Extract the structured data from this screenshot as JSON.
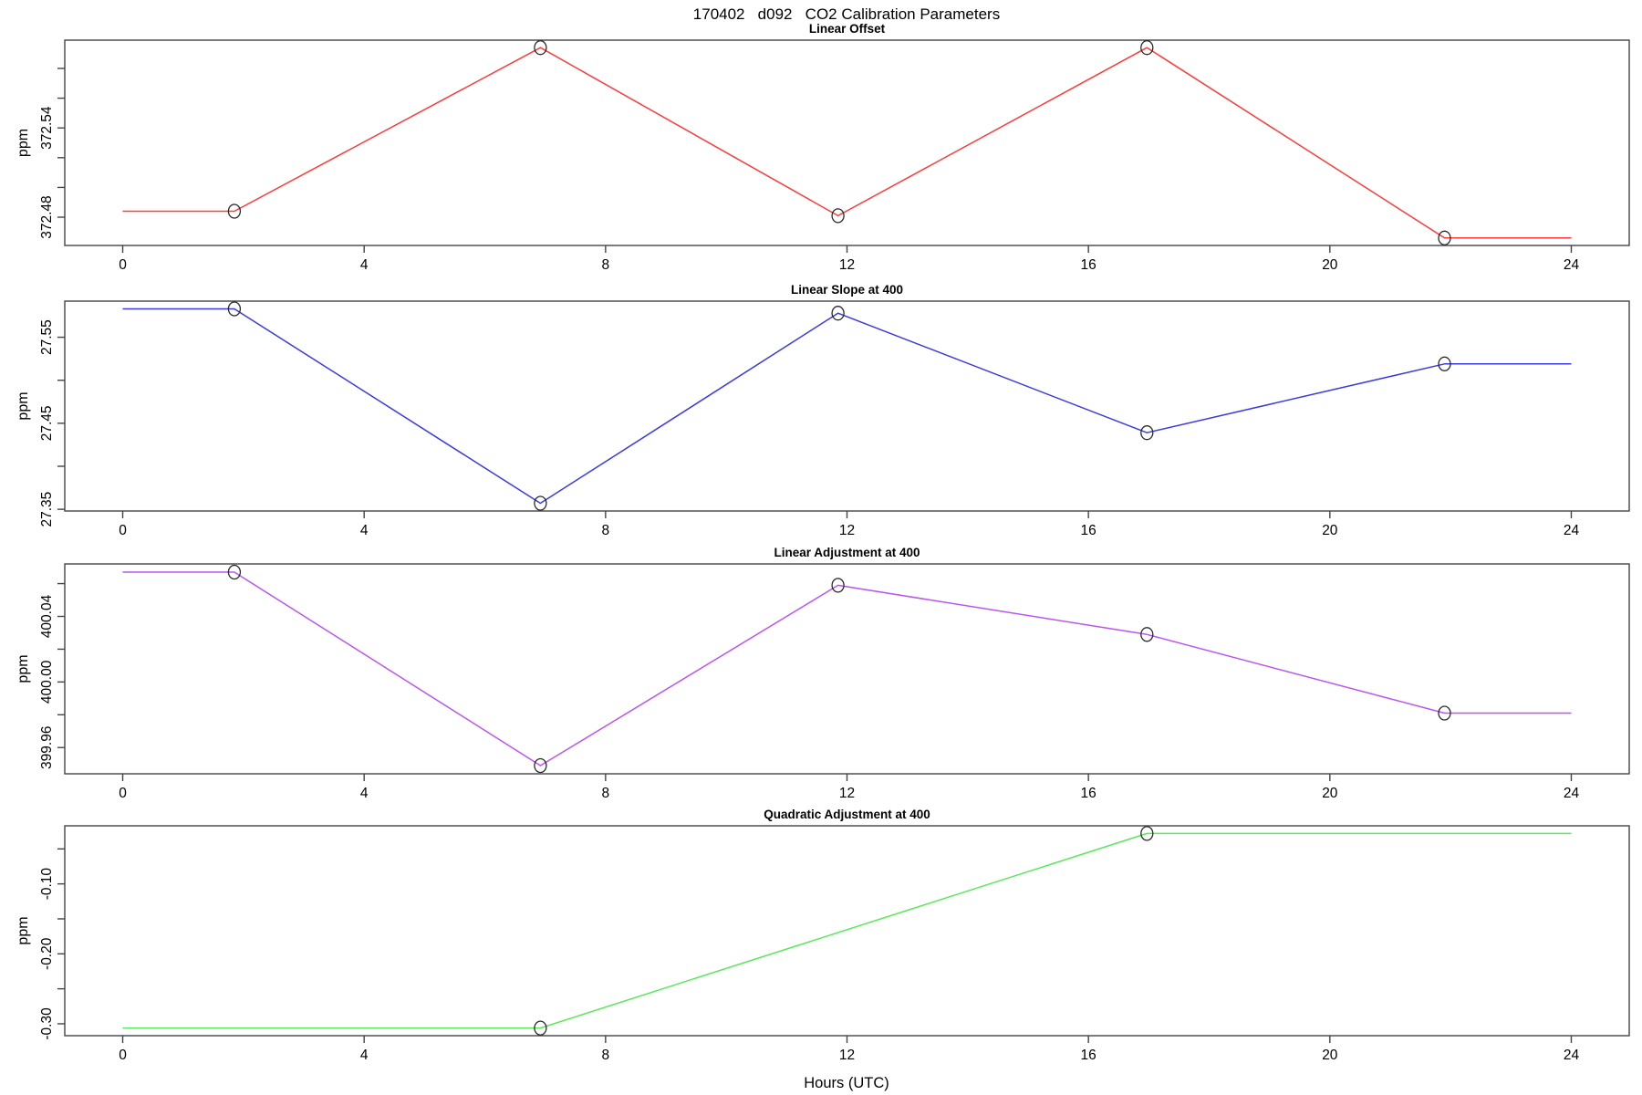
{
  "figure": {
    "title": "170402   d092   CO2 Calibration Parameters",
    "xlabel": "Hours (UTC)"
  },
  "chart_data": {
    "type": "line",
    "title": "170402   d092   CO2 Calibration Parameters",
    "xlabel": "Hours (UTC)",
    "x_unit": "hours UTC",
    "xticks": [
      0,
      4,
      8,
      12,
      16,
      20,
      24
    ],
    "xlim": [
      -0.96,
      24.96
    ],
    "marker": "open-circle",
    "grid": false,
    "legend": "none",
    "line_extension": {
      "start_hour": 0,
      "end_hour": 24
    },
    "panels": [
      {
        "title": "Linear Offset",
        "ylabel": "ppm",
        "color": "#ff3b3b",
        "color_name": "red",
        "ylim": [
          372.461,
          372.599
        ],
        "yticks": [
          {
            "v": 372.48,
            "label": "372.48"
          },
          {
            "v": 372.5,
            "label": ""
          },
          {
            "v": 372.52,
            "label": ""
          },
          {
            "v": 372.54,
            "label": "372.54"
          },
          {
            "v": 372.56,
            "label": ""
          },
          {
            "v": 372.58,
            "label": ""
          }
        ],
        "hours": [
          1.85,
          6.92,
          11.85,
          16.97,
          21.9
        ],
        "values": [
          372.484,
          372.594,
          372.481,
          372.594,
          372.466
        ]
      },
      {
        "title": "Linear Slope at 400",
        "ylabel": "ppm",
        "color": "#3b3be0",
        "color_name": "blue",
        "ylim": [
          27.348,
          27.592
        ],
        "yticks": [
          {
            "v": 27.35,
            "label": "27.35"
          },
          {
            "v": 27.4,
            "label": ""
          },
          {
            "v": 27.45,
            "label": "27.45"
          },
          {
            "v": 27.5,
            "label": ""
          },
          {
            "v": 27.55,
            "label": "27.55"
          }
        ],
        "hours": [
          1.85,
          6.92,
          11.85,
          16.97,
          21.9
        ],
        "values": [
          27.583,
          27.357,
          27.578,
          27.439,
          27.519
        ]
      },
      {
        "title": "Linear Adjustment at 400",
        "ylabel": "ppm",
        "color": "#bb55ee",
        "color_name": "purple",
        "ylim": [
          399.944,
          400.072
        ],
        "yticks": [
          {
            "v": 399.96,
            "label": "399.96"
          },
          {
            "v": 399.98,
            "label": ""
          },
          {
            "v": 400.0,
            "label": "400.00"
          },
          {
            "v": 400.02,
            "label": ""
          },
          {
            "v": 400.04,
            "label": "400.04"
          },
          {
            "v": 400.06,
            "label": ""
          }
        ],
        "hours": [
          1.85,
          6.92,
          11.85,
          16.97,
          21.9
        ],
        "values": [
          400.067,
          399.949,
          400.059,
          400.029,
          399.981
        ]
      },
      {
        "title": "Quadratic Adjustment at 400",
        "ylabel": "ppm",
        "color": "#5ae85a",
        "color_name": "green",
        "ylim": [
          -0.317,
          -0.017
        ],
        "yticks": [
          {
            "v": -0.3,
            "label": "-0.30"
          },
          {
            "v": -0.25,
            "label": ""
          },
          {
            "v": -0.2,
            "label": "-0.20"
          },
          {
            "v": -0.15,
            "label": ""
          },
          {
            "v": -0.1,
            "label": "-0.10"
          },
          {
            "v": -0.05,
            "label": ""
          }
        ],
        "hours": [
          6.92,
          16.97
        ],
        "values": [
          -0.306,
          -0.028
        ]
      }
    ]
  }
}
